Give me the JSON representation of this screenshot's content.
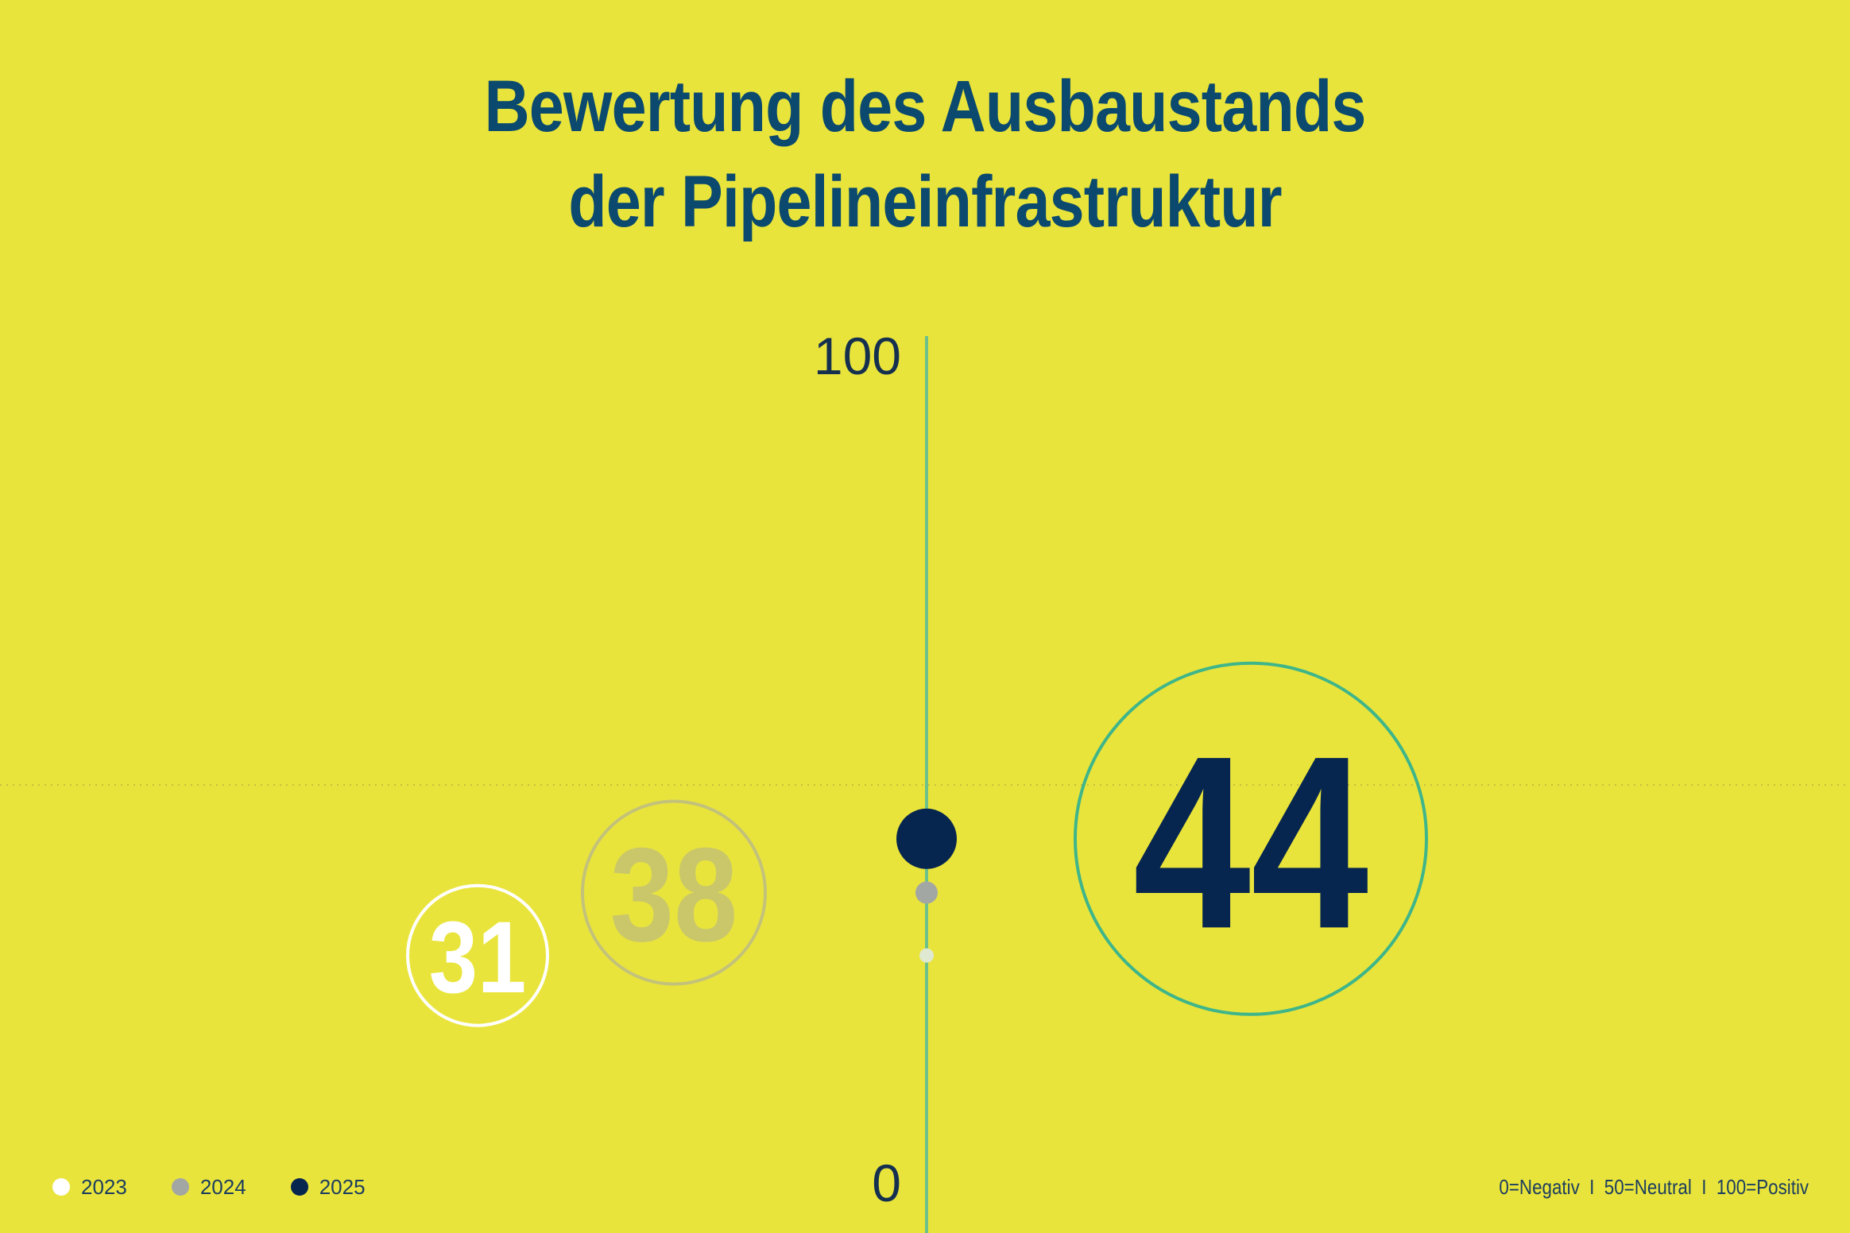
{
  "title_lines": [
    "Bewertung des Ausbaustands",
    "der Pipelineinfrastruktur"
  ],
  "scale_note": "0=Negativ  I  50=Neutral  I  100=Positiv",
  "colors": {
    "background": "#e9e43c",
    "title": "#0b4a6e",
    "axis": "#6cc08a",
    "y2023": "#ffffff",
    "y2024": "#a3a7a3",
    "y2025": "#07264f",
    "highlight_ring": "#3fb58a"
  },
  "chart_data": {
    "type": "scatter",
    "title": "Bewertung des Ausbaustands der Pipelineinfrastruktur",
    "ylim": [
      0,
      100
    ],
    "y_ticks": [
      "100",
      "0"
    ],
    "reference_line": 50,
    "grid": false,
    "legend_position": "bottom-left",
    "series": [
      {
        "name": "2023",
        "value": 31,
        "label": "31",
        "color": "#ffffff"
      },
      {
        "name": "2024",
        "value": 38,
        "label": "38",
        "color": "#a3a7a3"
      },
      {
        "name": "2025",
        "value": 44,
        "label": "44",
        "color": "#07264f"
      }
    ]
  }
}
